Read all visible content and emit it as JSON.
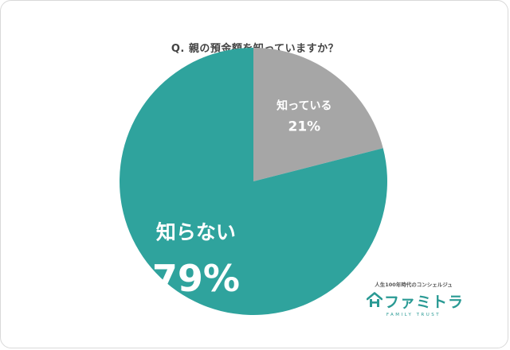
{
  "chart_data": {
    "type": "pie",
    "title": "Q. 親の預金額を知っていますか？",
    "slices": [
      {
        "label": "知っている",
        "value": 21,
        "value_text": "21%",
        "color": "#a6a6a6"
      },
      {
        "label": "知らない",
        "value": 79,
        "value_text": "79%",
        "color": "#2fa39d"
      }
    ],
    "start": "12 o'clock",
    "direction": "clockwise",
    "legend": "none"
  },
  "logo": {
    "tagline": "人生100年時代のコンシェルジュ",
    "name": "ファミトラ",
    "subtitle": "FAMILY TRUST",
    "icon": "house-icon",
    "color": "#2a9a94"
  }
}
